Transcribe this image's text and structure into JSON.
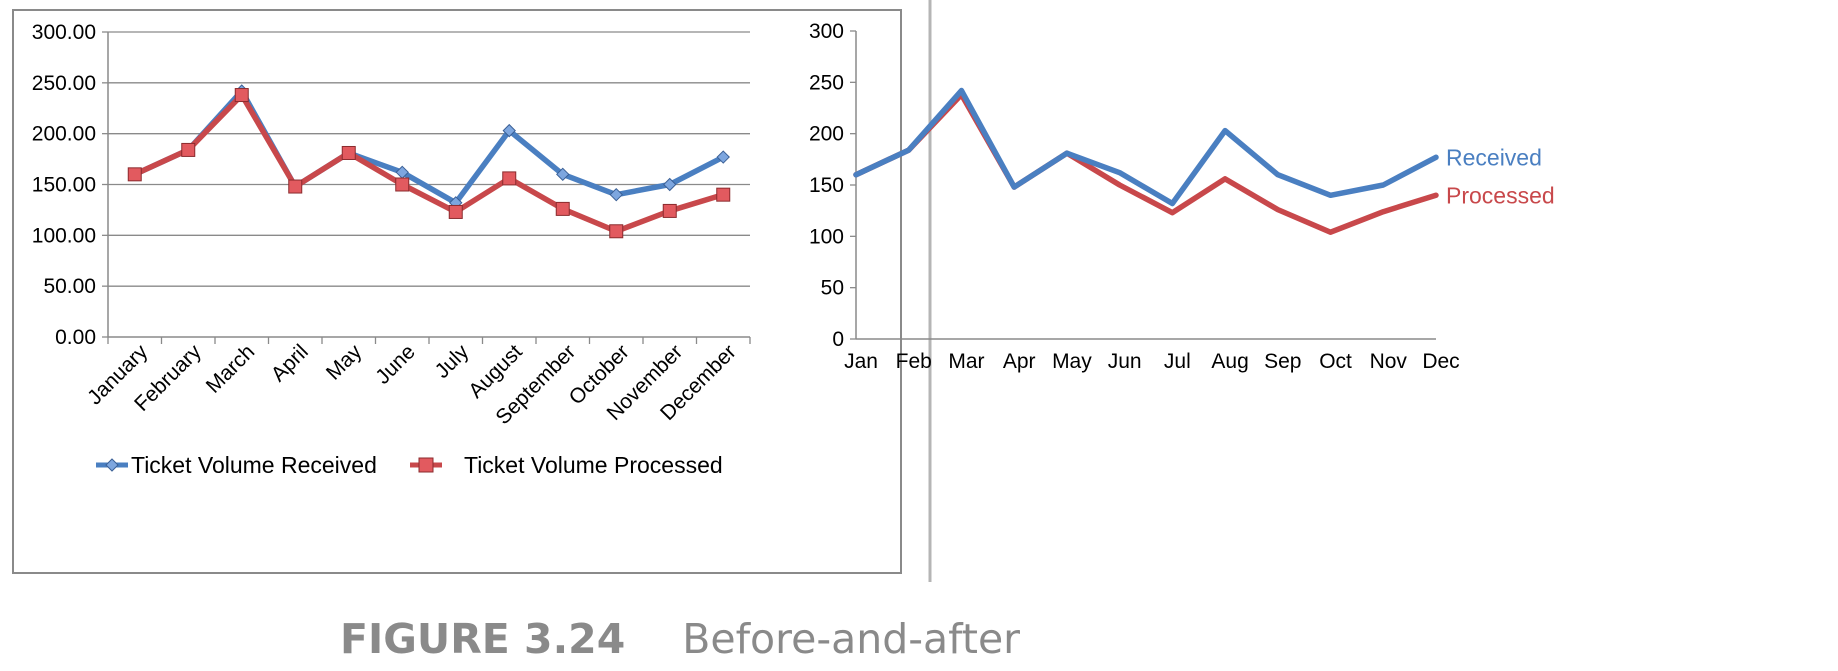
{
  "colors": {
    "received": "#4a7fc1",
    "processed": "#c8484b",
    "marker_received_fill": "#7da6df",
    "marker_processed_fill": "#e25a5f",
    "grid": "#8a8a8a",
    "axis_text": "#000000",
    "frame": "#8a8a8a",
    "caption": "#8a8a8a"
  },
  "caption": {
    "number": "FIGURE 3.24",
    "title": "Before-and-after"
  },
  "chart_data": [
    {
      "type": "line",
      "panel": "before",
      "categories": [
        "January",
        "February",
        "March",
        "April",
        "May",
        "June",
        "July",
        "August",
        "September",
        "October",
        "November",
        "December"
      ],
      "series": [
        {
          "name": "Ticket Volume Received",
          "values": [
            160,
            184,
            242,
            148,
            181,
            162,
            132,
            203,
            160,
            140,
            150,
            177
          ],
          "marker": "diamond-icon"
        },
        {
          "name": "Ticket Volume Processed",
          "values": [
            160,
            184,
            238,
            148,
            181,
            150,
            123,
            156,
            126,
            104,
            124,
            140
          ],
          "marker": "square-icon"
        }
      ],
      "ylim": [
        0,
        300
      ],
      "yticks": [
        "0.00",
        "50.00",
        "100.00",
        "150.00",
        "200.00",
        "250.00",
        "300.00"
      ],
      "xlabel": "",
      "ylabel": "",
      "grid": true,
      "legend": "bottom"
    },
    {
      "type": "line",
      "panel": "after",
      "categories": [
        "Jan",
        "Feb",
        "Mar",
        "Apr",
        "May",
        "Jun",
        "Jul",
        "Aug",
        "Sep",
        "Oct",
        "Nov",
        "Dec"
      ],
      "series": [
        {
          "name": "Received",
          "values": [
            160,
            184,
            242,
            148,
            181,
            162,
            132,
            203,
            160,
            140,
            150,
            177
          ]
        },
        {
          "name": "Processed",
          "values": [
            160,
            184,
            238,
            148,
            181,
            150,
            123,
            156,
            126,
            104,
            124,
            140
          ]
        }
      ],
      "ylim": [
        0,
        300
      ],
      "yticks": [
        "0",
        "50",
        "100",
        "150",
        "200",
        "250",
        "300"
      ],
      "xlabel": "",
      "ylabel": "",
      "grid": false,
      "legend": "direct-labels-right"
    }
  ]
}
